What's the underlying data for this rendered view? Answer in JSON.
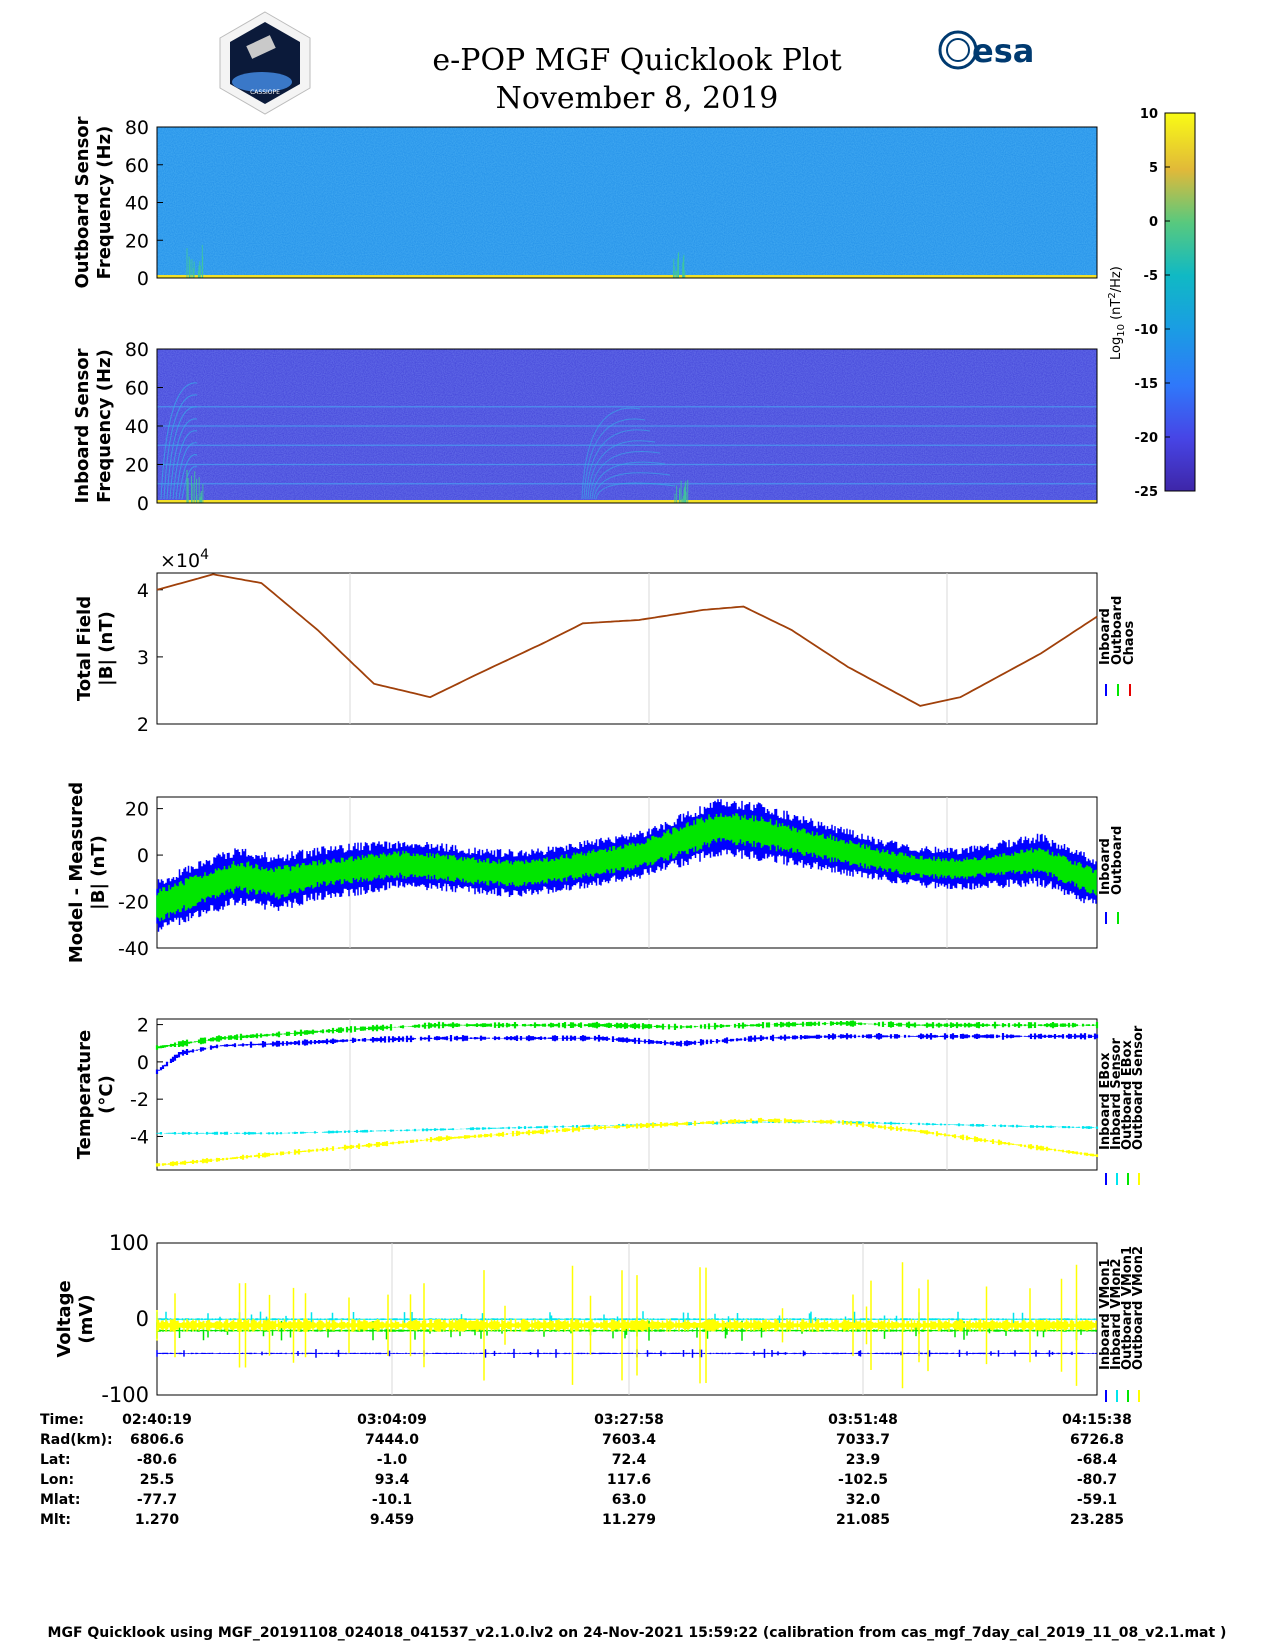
{
  "header": {
    "title": "e-POP MGF Quicklook Plot",
    "date": "November 8, 2019",
    "left_logo_text": "CASSIOPE",
    "right_logo_text": "esa"
  },
  "colors": {
    "inboard": "#0000ff",
    "outboard": "#00e600",
    "chaos": "#e60000",
    "cyan": "#00e5ee",
    "yellow": "#ffff00",
    "total_field_line": "#a0400a",
    "grid": "#d9d9d9"
  },
  "colorbar": {
    "label_main": "Log",
    "label_sub": "10",
    "label_units": " (nT",
    "label_exp": "2",
    "label_tail": "/Hz)",
    "ticks": [
      "10",
      "5",
      "0",
      "-5",
      "-10",
      "-15",
      "-20",
      "-25"
    ],
    "range": [
      -25,
      10
    ]
  },
  "chart_data": [
    {
      "type": "heatmap",
      "id": "outboard_spectrogram",
      "ylabel_line1": "Outboard Sensor",
      "ylabel_line2": "Frequency (Hz)",
      "ylim": [
        0,
        80
      ],
      "yticks": [
        "80",
        "60",
        "40",
        "20",
        "0"
      ],
      "background_log_psd": -12
    },
    {
      "type": "heatmap",
      "id": "inboard_spectrogram",
      "ylabel_line1": "Inboard Sensor",
      "ylabel_line2": "Frequency (Hz)",
      "ylim": [
        0,
        80
      ],
      "yticks": [
        "80",
        "60",
        "40",
        "20",
        "0"
      ],
      "background_log_psd": -22,
      "persistent_tones_hz": [
        10,
        20,
        30,
        40,
        50
      ]
    },
    {
      "type": "line",
      "id": "total_field",
      "ylabel_line1": "Total Field",
      "ylabel_line2": "|B| (nT)",
      "exponent_label": "×10",
      "exponent_power": "4",
      "ylim": [
        2,
        4.25
      ],
      "yticks": [
        "4",
        "3",
        "2"
      ],
      "legend": [
        "Inboard",
        "Outboard",
        "Chaos"
      ],
      "x_minutes": [
        0,
        7,
        13,
        20,
        27,
        34,
        40,
        48,
        53,
        60,
        68,
        73,
        79,
        86,
        95
      ],
      "values": [
        4.0,
        4.23,
        4.1,
        3.4,
        2.6,
        2.4,
        2.75,
        3.2,
        3.5,
        3.55,
        3.7,
        3.75,
        3.4,
        2.85,
        2.27
      ],
      "values_tail": [
        [
          95,
          2.27
        ],
        [
          100,
          2.4
        ],
        [
          110,
          3.05
        ],
        [
          117,
          3.6
        ]
      ]
    },
    {
      "type": "area",
      "id": "model_minus_measured",
      "ylabel_line1": "Model - Measured",
      "ylabel_line2": "|B| (nT)",
      "ylim": [
        -40,
        25
      ],
      "yticks": [
        "20",
        "0",
        "-20",
        "-40"
      ],
      "legend": [
        "Inboard",
        "Outboard"
      ],
      "x_minutes": [
        0,
        5,
        10,
        15,
        20,
        25,
        30,
        35,
        40,
        45,
        50,
        55,
        60,
        65,
        70,
        75,
        80,
        85,
        90,
        95,
        100,
        105,
        110,
        117
      ],
      "inboard_center": [
        -22,
        -15,
        -9,
        -12,
        -8,
        -6,
        -4,
        -5,
        -7,
        -8,
        -6,
        -3,
        0,
        6,
        12,
        10,
        6,
        2,
        -2,
        -5,
        -6,
        -4,
        -2,
        -12
      ],
      "inboard_spread": [
        10,
        11,
        11,
        11,
        10,
        10,
        9,
        9,
        9,
        9,
        9,
        9,
        9,
        10,
        11,
        11,
        10,
        9,
        8,
        8,
        8,
        9,
        10,
        10
      ],
      "outboard_spread": [
        6,
        6,
        6,
        6,
        5,
        5,
        5,
        5,
        5,
        5,
        5,
        5,
        5,
        6,
        6,
        6,
        5,
        5,
        4,
        4,
        4,
        4,
        5,
        5
      ]
    },
    {
      "type": "line",
      "id": "temperature",
      "ylabel_line1": "Temperature",
      "ylabel_line2": "(°C)",
      "ylim": [
        -5.8,
        2.3
      ],
      "yticks": [
        "2",
        "0",
        "-2",
        "-4"
      ],
      "legend": [
        "Inboard EBox",
        "Inboard Sensor",
        "Outboard EBox",
        "Outboard Sensor"
      ],
      "x_minutes": [
        0,
        3,
        8,
        15,
        25,
        35,
        45,
        55,
        65,
        75,
        85,
        95,
        105,
        117
      ],
      "inboard_ebox": [
        -0.5,
        0.5,
        0.9,
        1.0,
        1.2,
        1.3,
        1.3,
        1.3,
        1.0,
        1.3,
        1.4,
        1.4,
        1.4,
        1.4
      ],
      "outboard_ebox": [
        0.8,
        1.0,
        1.3,
        1.5,
        1.8,
        2.0,
        2.0,
        2.0,
        1.9,
        2.0,
        2.1,
        2.0,
        2.0,
        2.0
      ],
      "inboard_sensor": [
        -3.8,
        -3.8,
        -3.8,
        -3.8,
        -3.7,
        -3.6,
        -3.5,
        -3.4,
        -3.3,
        -3.2,
        -3.2,
        -3.3,
        -3.4,
        -3.5
      ],
      "outboard_sensor": [
        -5.5,
        -5.4,
        -5.2,
        -4.9,
        -4.5,
        -4.1,
        -3.8,
        -3.5,
        -3.3,
        -3.1,
        -3.2,
        -3.7,
        -4.3,
        -5.0
      ]
    },
    {
      "type": "line",
      "id": "voltage",
      "ylabel_line1": "Voltage",
      "ylabel_line2": "(mV)",
      "ylim": [
        -100,
        100
      ],
      "yticks": [
        "100",
        "0",
        "-100"
      ],
      "legend": [
        "Inboard VMon1",
        "Inboard VMon2",
        "Outboard VMon1",
        "Outboard VMon2"
      ],
      "inboard_vmon1_mean": -45,
      "inboard_vmon2_mean": -15,
      "outboard_vmon1_mean": 0,
      "outboard_vmon2_mean": -8
    }
  ],
  "ephemeris": {
    "labels": [
      "Time:",
      "Rad(km):",
      "Lat:",
      "Lon:",
      "Mlat:",
      "Mlt:"
    ],
    "columns": [
      [
        "02:40:19",
        "6806.6",
        "-80.6",
        "25.5",
        "-77.7",
        "1.270"
      ],
      [
        "03:04:09",
        "7444.0",
        "-1.0",
        "93.4",
        "-10.1",
        "9.459"
      ],
      [
        "03:27:58",
        "7603.4",
        "72.4",
        "117.6",
        "63.0",
        "11.279"
      ],
      [
        "03:51:48",
        "7033.7",
        "23.9",
        "-102.5",
        "32.0",
        "21.085"
      ],
      [
        "04:15:38",
        "6726.8",
        "-68.4",
        "-80.7",
        "-59.1",
        "23.285"
      ]
    ]
  },
  "footer": {
    "text": "MGF Quicklook using MGF_20191108_024018_041537_v2.1.0.lv2 on 24-Nov-2021 15:59:22 (calibration from cas_mgf_7day_cal_2019_11_08_v2.1.mat )"
  }
}
